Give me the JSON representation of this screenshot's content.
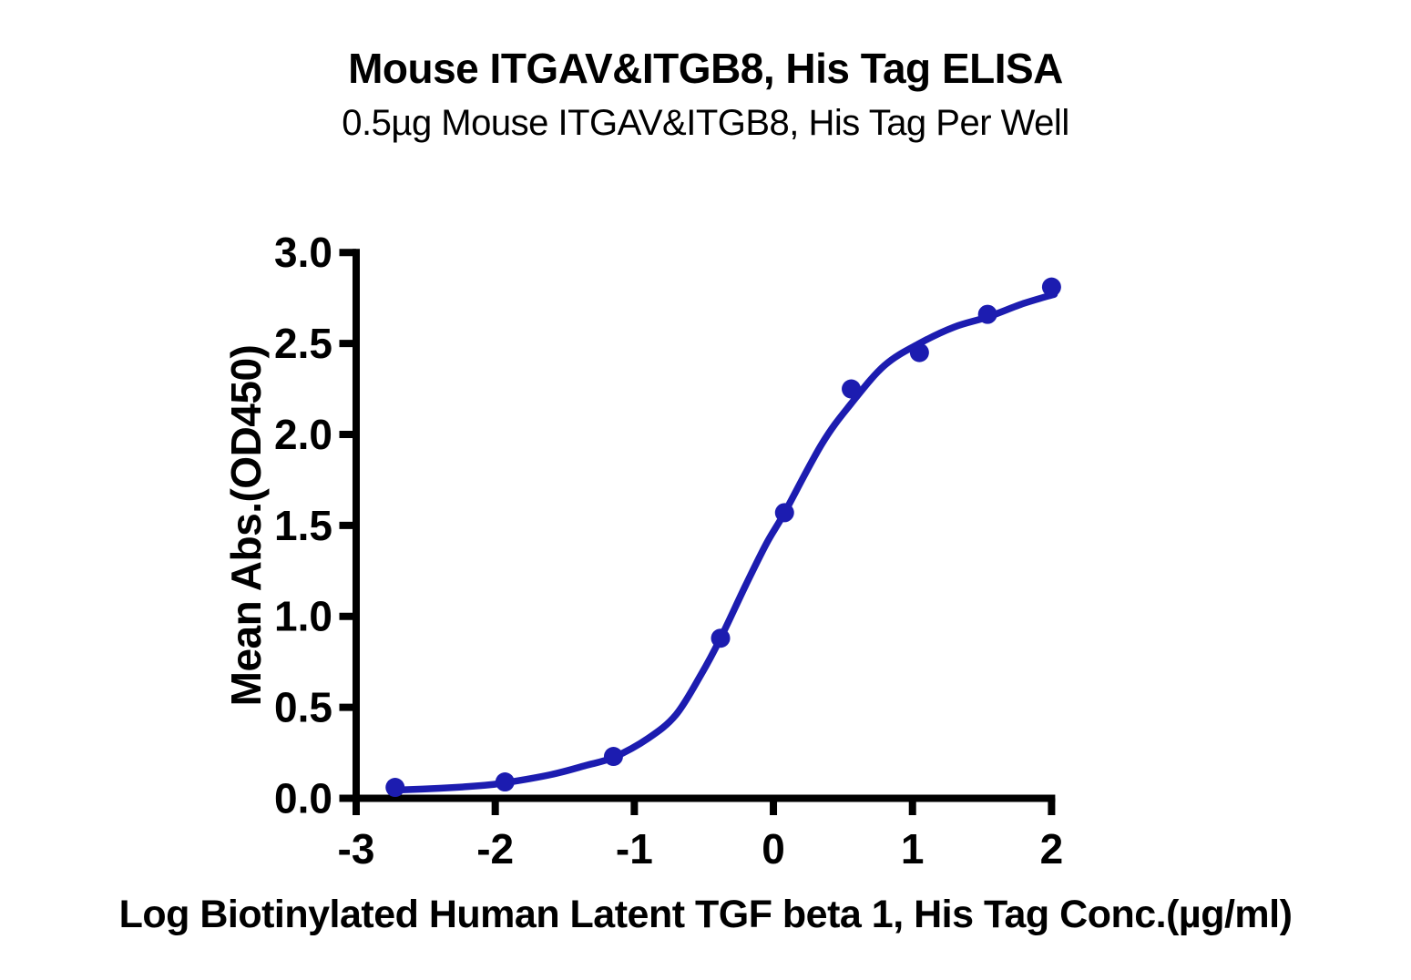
{
  "chart_data": {
    "type": "scatter",
    "title": "Mouse ITGAV&ITGB8, His Tag ELISA",
    "subtitle": "0.5µg Mouse ITGAV&ITGB8, His Tag Per Well",
    "xlabel": "Log Biotinylated Human Latent TGF beta 1, His Tag Conc.(µg/ml)",
    "ylabel": "Mean Abs.(OD450)",
    "xlim": [
      -3,
      2
    ],
    "ylim": [
      0,
      3
    ],
    "x_ticks": [
      -3,
      -2,
      -1,
      0,
      1,
      2
    ],
    "x_tick_labels": [
      "-3",
      "-2",
      "-1",
      "0",
      "1",
      "2"
    ],
    "y_ticks": [
      0,
      0.5,
      1,
      1.5,
      2,
      2.5,
      3
    ],
    "y_tick_labels": [
      "0.0",
      "0.5",
      "1.0",
      "1.5",
      "2.0",
      "2.5",
      "3.0"
    ],
    "grid": false,
    "legend": "none",
    "series": [
      {
        "name": "Biotinylated Human Latent TGF beta 1, His Tag",
        "marker": "circle",
        "marker_color": "#1c1cb0",
        "line_color": "#1c1cb0",
        "points": {
          "x": [
            -2.72,
            -1.93,
            -1.15,
            -0.38,
            0.08,
            0.56,
            1.05,
            1.54,
            2.0
          ],
          "y": [
            0.06,
            0.09,
            0.23,
            0.88,
            1.57,
            2.25,
            2.45,
            2.66,
            2.81
          ]
        },
        "fit_curve": {
          "shape": "4PL sigmoidal dose-response",
          "x": [
            -2.72,
            -2.4,
            -2.1,
            -1.93,
            -1.6,
            -1.35,
            -1.15,
            -0.9,
            -0.7,
            -0.52,
            -0.38,
            -0.2,
            -0.05,
            0.08,
            0.35,
            0.56,
            0.8,
            1.05,
            1.3,
            1.54,
            1.8,
            2.02
          ],
          "y": [
            0.045,
            0.055,
            0.07,
            0.085,
            0.13,
            0.18,
            0.225,
            0.33,
            0.46,
            0.68,
            0.88,
            1.17,
            1.4,
            1.57,
            1.95,
            2.17,
            2.38,
            2.5,
            2.59,
            2.645,
            2.72,
            2.77
          ]
        }
      }
    ]
  },
  "colors": {
    "curve": "#1c1cb0",
    "axis": "#000000",
    "text": "#000000",
    "background": "#ffffff"
  }
}
